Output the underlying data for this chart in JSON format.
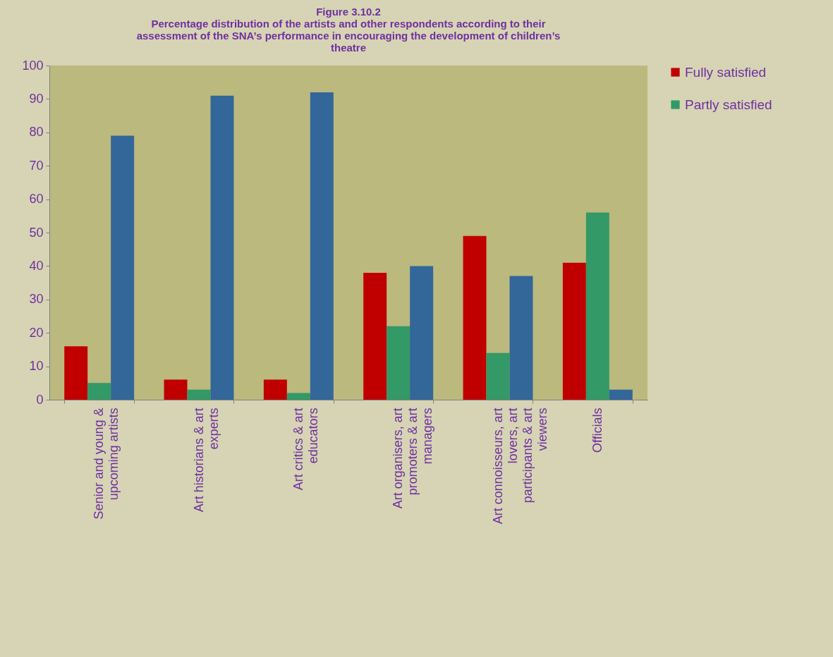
{
  "chart_data": {
    "type": "bar",
    "title": "Figure 3.10.2",
    "subtitle": "Percentage distribution of the artists and other respondents according to their assessment of the SNA’s performance in encouraging the development of children’s theatre",
    "categories": [
      "Senior and young & upcoming artists",
      "Art historians & art experts",
      "Art critics & art educators",
      "Art organisers, art promoters & art managers",
      "Art connoisseurs, art lovers, art participants & art viewers",
      "Officials"
    ],
    "series": [
      {
        "name": "Fully satisfied",
        "color": "#c00000",
        "values": [
          16,
          6,
          6,
          38,
          49,
          41
        ]
      },
      {
        "name": "Partly satisfied",
        "color": "#339966",
        "values": [
          5,
          3,
          2,
          22,
          14,
          56
        ]
      },
      {
        "color": "#336699",
        "values": [
          79,
          91,
          92,
          40,
          37,
          3
        ]
      }
    ],
    "ylim": [
      0,
      100
    ],
    "yticks": [
      0,
      10,
      20,
      30,
      40,
      50,
      60,
      70,
      80,
      90,
      100
    ],
    "grid": false,
    "legend": "right"
  }
}
